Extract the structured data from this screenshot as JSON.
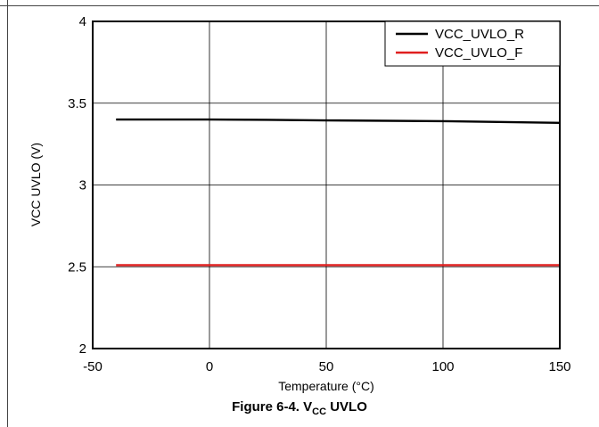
{
  "figure": {
    "caption_prefix": "Figure 6-4. V",
    "caption_sub": "CC",
    "caption_suffix": " UVLO"
  },
  "chart_data": {
    "type": "line",
    "title": "",
    "xlabel": "Temperature (°C)",
    "ylabel": "VCC UVLO (V)",
    "xlim": [
      -50,
      150
    ],
    "ylim": [
      2,
      4
    ],
    "xticks": [
      -50,
      0,
      50,
      100,
      150
    ],
    "yticks": [
      2,
      2.5,
      3,
      3.5,
      4
    ],
    "xtick_labels": [
      "-50",
      "0",
      "50",
      "100",
      "150"
    ],
    "ytick_labels": [
      "2",
      "2.5",
      "3",
      "3.5",
      "4"
    ],
    "grid": true,
    "legend_position": "top-right",
    "series": [
      {
        "name": "VCC_UVLO_R",
        "color": "#000000",
        "x": [
          -40,
          0,
          25,
          50,
          100,
          150
        ],
        "y": [
          3.4,
          3.4,
          3.398,
          3.395,
          3.39,
          3.38
        ]
      },
      {
        "name": "VCC_UVLO_F",
        "color": "#e01e1e",
        "x": [
          -40,
          0,
          25,
          50,
          100,
          150
        ],
        "y": [
          2.51,
          2.51,
          2.51,
          2.51,
          2.51,
          2.51
        ]
      }
    ]
  }
}
